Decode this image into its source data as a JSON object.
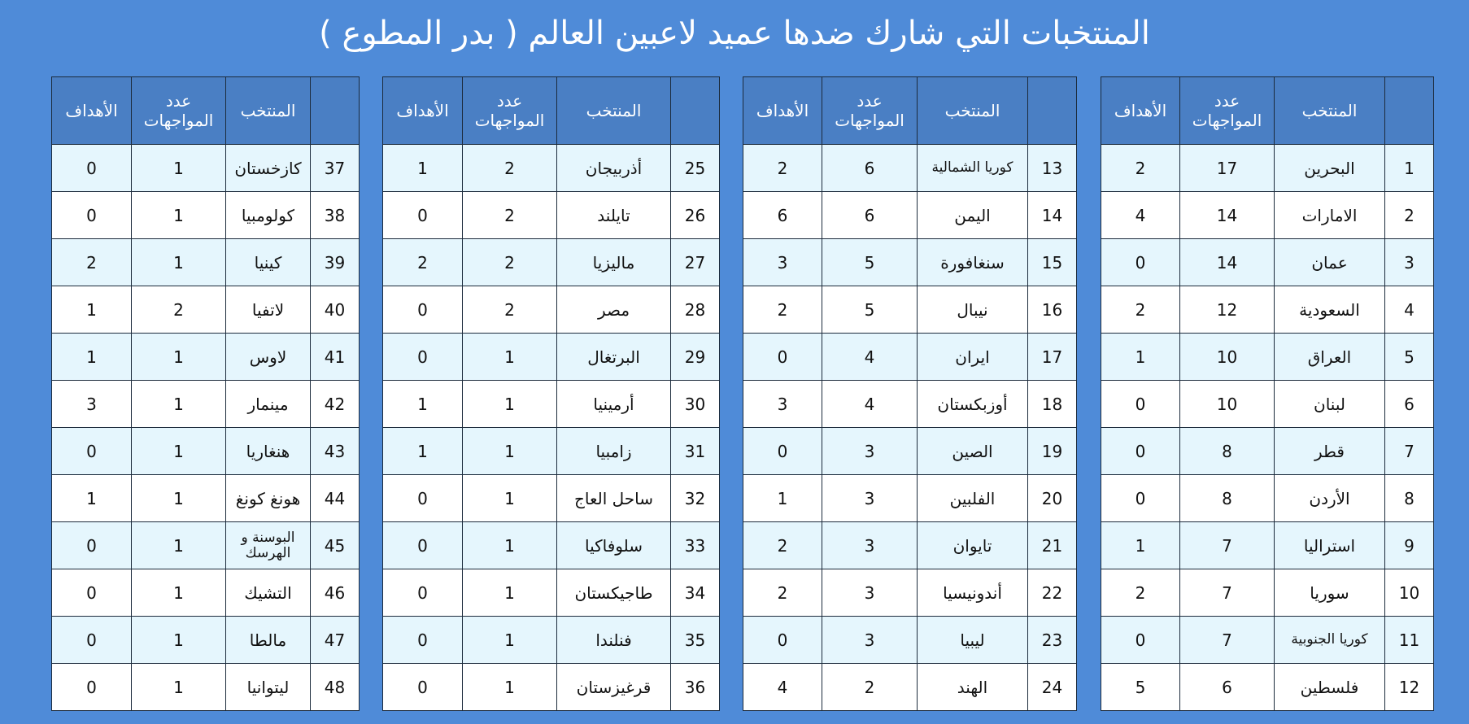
{
  "title": "المنتخبات التي شارك ضدها عميد لاعبين العالم ( بدر المطوع )",
  "headers": [
    "المنتخب",
    "عدد المواجهات",
    "الأهداف"
  ],
  "tables": [
    {
      "rows": [
        [
          1,
          "البحرين",
          17,
          2
        ],
        [
          2,
          "الامارات",
          14,
          4
        ],
        [
          3,
          "عمان",
          14,
          0
        ],
        [
          4,
          "السعودية",
          12,
          2
        ],
        [
          5,
          "العراق",
          10,
          1
        ],
        [
          6,
          "لبنان",
          10,
          0
        ],
        [
          7,
          "قطر",
          8,
          0
        ],
        [
          8,
          "الأردن",
          8,
          0
        ],
        [
          9,
          "استراليا",
          7,
          1
        ],
        [
          10,
          "سوريا",
          7,
          2
        ],
        [
          11,
          "كوريا الجنوبية",
          7,
          0
        ],
        [
          12,
          "فلسطين",
          6,
          5
        ]
      ]
    },
    {
      "rows": [
        [
          13,
          "كوريا الشمالية",
          6,
          2
        ],
        [
          14,
          "اليمن",
          6,
          6
        ],
        [
          15,
          "سنغافورة",
          5,
          3
        ],
        [
          16,
          "نيبال",
          5,
          2
        ],
        [
          17,
          "ايران",
          4,
          0
        ],
        [
          18,
          "أوزبكستان",
          4,
          3
        ],
        [
          19,
          "الصين",
          3,
          0
        ],
        [
          20,
          "الفلبين",
          3,
          1
        ],
        [
          21,
          "تايوان",
          3,
          2
        ],
        [
          22,
          "أندونيسيا",
          3,
          2
        ],
        [
          23,
          "ليبيا",
          3,
          0
        ],
        [
          24,
          "الهند",
          2,
          4
        ]
      ]
    },
    {
      "rows": [
        [
          25,
          "أذربيجان",
          2,
          1
        ],
        [
          26,
          "تايلند",
          2,
          0
        ],
        [
          27,
          "ماليزيا",
          2,
          2
        ],
        [
          28,
          "مصر",
          2,
          0
        ],
        [
          29,
          "البرتغال",
          1,
          0
        ],
        [
          30,
          "أرمينيا",
          1,
          1
        ],
        [
          31,
          "زامبيا",
          1,
          1
        ],
        [
          32,
          "ساحل العاج",
          1,
          0
        ],
        [
          33,
          "سلوفاكيا",
          1,
          0
        ],
        [
          34,
          "طاجيكستان",
          1,
          0
        ],
        [
          35,
          "فنلندا",
          1,
          0
        ],
        [
          36,
          "قرغيزستان",
          1,
          0
        ]
      ]
    },
    {
      "rows": [
        [
          37,
          "كازخستان",
          1,
          0
        ],
        [
          38,
          "كولومبيا",
          1,
          0
        ],
        [
          39,
          "كينيا",
          1,
          2
        ],
        [
          40,
          "لاتفيا",
          2,
          1
        ],
        [
          41,
          "لاوس",
          1,
          1
        ],
        [
          42,
          "مينمار",
          1,
          3
        ],
        [
          43,
          "هنغاريا",
          1,
          0
        ],
        [
          44,
          "هونغ كونغ",
          1,
          1
        ],
        [
          45,
          "البوسنة و الهرسك",
          1,
          0
        ],
        [
          46,
          "التشيك",
          1,
          0
        ],
        [
          47,
          "مالطا",
          1,
          0
        ],
        [
          48,
          "ليتوانيا",
          1,
          0
        ]
      ]
    }
  ]
}
